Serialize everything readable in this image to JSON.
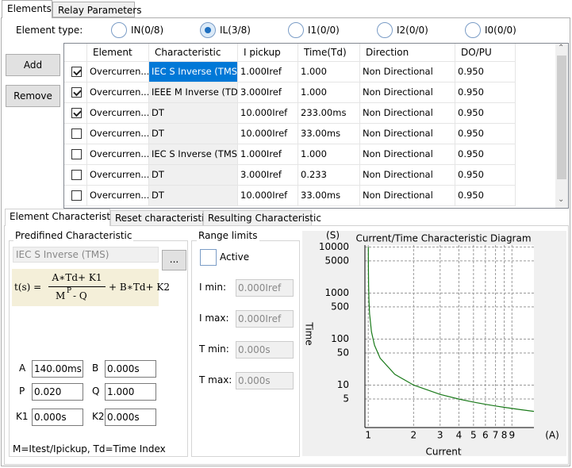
{
  "tabs": [
    "Elements",
    "Relay Parameters"
  ],
  "element_type": {
    "label": "Element type:",
    "options": [
      {
        "label": "IN(0/8)",
        "checked": false
      },
      {
        "label": "IL(3/8)",
        "checked": true
      },
      {
        "label": "I1(0/0)",
        "checked": false
      },
      {
        "label": "I2(0/0)",
        "checked": false
      },
      {
        "label": "I0(0/0)",
        "checked": false
      }
    ]
  },
  "buttons": [
    "Add",
    "Remove"
  ],
  "table": {
    "columns": [
      "Element",
      "Characteristic",
      "I pickup",
      "Time(Td)",
      "Direction",
      "DO/PU"
    ],
    "rows": [
      {
        "checked": true,
        "selected": true,
        "cells": [
          "Overcurren...",
          "IEC S Inverse (TMS)",
          "1.000Iref",
          "1.000",
          "Non Directional",
          "0.950"
        ]
      },
      {
        "checked": true,
        "selected": false,
        "cells": [
          "Overcurren...",
          "IEEE M Inverse (TD)",
          "3.000Iref",
          "1.000",
          "Non Directional",
          "0.950"
        ]
      },
      {
        "checked": true,
        "selected": false,
        "cells": [
          "Overcurren...",
          "DT",
          "10.000Iref",
          "233.00ms",
          "Non Directional",
          "0.950"
        ]
      },
      {
        "checked": false,
        "selected": false,
        "cells": [
          "Overcurren...",
          "DT",
          "10.000Iref",
          "33.00ms",
          "Non Directional",
          "0.950"
        ]
      },
      {
        "checked": false,
        "selected": false,
        "cells": [
          "Overcurren...",
          "IEC S Inverse (TMS)",
          "1.000Iref",
          "1.000",
          "Non Directional",
          "0.950"
        ]
      },
      {
        "checked": false,
        "selected": false,
        "cells": [
          "Overcurren...",
          "DT",
          "3.000Iref",
          "0.233",
          "Non Directional",
          "0.950"
        ]
      },
      {
        "checked": false,
        "selected": false,
        "cells": [
          "Overcurren...",
          "DT",
          "10.000Iref",
          "33.00ms",
          "Non Directional",
          "0.950"
        ]
      }
    ]
  },
  "lower_tabs": [
    "Element Characteristic",
    "Reset characteristic",
    "Resulting Characteristic"
  ],
  "predefined": {
    "title": "Predifined Characteristic",
    "selection": "IEC S Inverse (TMS)",
    "button": "...",
    "formula": {
      "lhs": "t(s) =",
      "numerator": "A∗Td+ K1",
      "den_base": "M",
      "den_exp": "P",
      "den_rest": " - Q",
      "rest": "+ B∗Td+ K2"
    },
    "params": [
      {
        "label": "A",
        "value": "140.00ms"
      },
      {
        "label": "B",
        "value": "0.000s"
      },
      {
        "label": "P",
        "value": "0.020"
      },
      {
        "label": "Q",
        "value": "1.000"
      },
      {
        "label": "K1",
        "value": "0.000s"
      },
      {
        "label": "K2",
        "value": "0.000s"
      }
    ],
    "note": "M=Itest/Ipickup,  Td=Time Index"
  },
  "range_limits": {
    "title": "Range limits",
    "active": "Active",
    "active_checked": false,
    "fields": [
      {
        "label": "I min:",
        "value": "0.000Iref"
      },
      {
        "label": "I max:",
        "value": "0.000Iref"
      },
      {
        "label": "T min:",
        "value": "0.000s"
      },
      {
        "label": "T max:",
        "value": "0.000s"
      }
    ]
  },
  "chart_data": {
    "type": "line",
    "title": "Current/Time Characteristic Diagram",
    "x_label": "Current",
    "y_label": "Time",
    "x_unit": "(A)",
    "y_unit": "(S)",
    "log_x": true,
    "log_y": true,
    "grid": true,
    "color": "#1a7a1a",
    "x": [
      1.0007,
      1.002,
      1.005,
      1.01,
      1.02,
      1.05,
      1.1,
      1.2,
      1.5,
      2,
      3,
      4,
      5,
      6,
      7,
      8,
      10,
      12.6
    ],
    "values": [
      10003,
      3503,
      1403.5,
      703.5,
      353.5,
      143.4,
      73.38,
      38.32,
      17.19,
      10.03,
      6.3,
      4.98,
      4.28,
      3.84,
      3.53,
      3.3,
      2.97,
      2.69
    ],
    "xlim": [
      0.95,
      12.6
    ],
    "ylim": [
      1.2,
      11000
    ],
    "xticks": [
      1,
      2,
      3,
      4,
      5,
      6,
      7,
      8,
      9
    ],
    "yticks": [
      5,
      10,
      50,
      100,
      500,
      1000,
      5000,
      10000
    ]
  }
}
